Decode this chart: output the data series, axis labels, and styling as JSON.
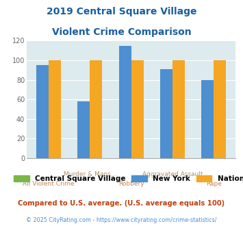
{
  "title_line1": "2019 Central Square Village",
  "title_line2": "Violent Crime Comparison",
  "title_color": "#1a5fa0",
  "categories": [
    "All Violent Crime",
    "Murder & Mans...",
    "Robbery",
    "Aggravated Assault",
    "Rape"
  ],
  "top_labels": [
    "",
    "Murder & Mans...",
    "",
    "Aggravated Assault",
    ""
  ],
  "bot_labels": [
    "All Violent Crime",
    "",
    "Robbery",
    "",
    "Rape"
  ],
  "new_york": [
    95,
    58,
    115,
    91,
    80
  ],
  "national": [
    100,
    100,
    100,
    100,
    100
  ],
  "bar_color_csv": "#7ab648",
  "bar_color_ny": "#4d8fd1",
  "bar_color_nat": "#f5a623",
  "bg_color": "#ddeaee",
  "ylim": [
    0,
    120
  ],
  "yticks": [
    0,
    20,
    40,
    60,
    80,
    100,
    120
  ],
  "xlabel_color_top": "#b09070",
  "xlabel_color_bot": "#c08850",
  "legend_csv_label": "Central Square Village",
  "legend_ny_label": "New York",
  "legend_nat_label": "National",
  "footer_note": "Compared to U.S. average. (U.S. average equals 100)",
  "footer_note_color": "#c04010",
  "copyright": "© 2025 CityRating.com - https://www.cityrating.com/crime-statistics/",
  "copyright_color": "#4d8fd1"
}
